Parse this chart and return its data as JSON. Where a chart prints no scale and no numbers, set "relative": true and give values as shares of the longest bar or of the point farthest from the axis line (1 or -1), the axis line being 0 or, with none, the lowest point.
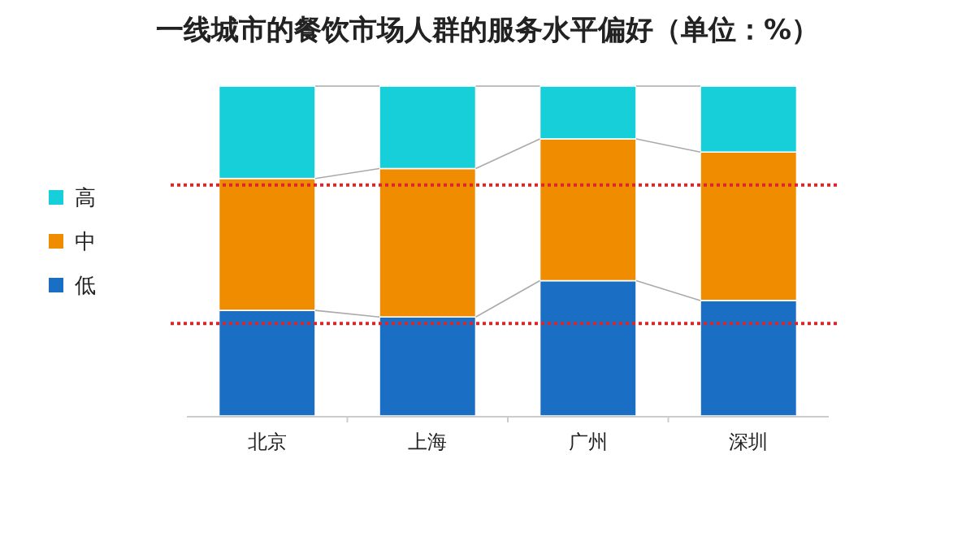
{
  "chart_data": {
    "type": "bar",
    "title": "一线城市的餐饮市场人群的服务水平偏好（单位：%）",
    "categories": [
      "北京",
      "上海",
      "广州",
      "深圳"
    ],
    "stacked": true,
    "relative": true,
    "legend": "left",
    "series": [
      {
        "name": "低",
        "color": "#1a6fc4",
        "values": [
          0.32,
          0.3,
          0.41,
          0.35
        ]
      },
      {
        "name": "中",
        "color": "#f08c00",
        "values": [
          0.4,
          0.45,
          0.43,
          0.45
        ]
      },
      {
        "name": "高",
        "color": "#17cfd8",
        "values": [
          0.28,
          0.25,
          0.16,
          0.2
        ]
      }
    ],
    "ref_lines": [
      {
        "axis": "y",
        "value": 0.7,
        "color": "#d9262b",
        "line_style": "dotted"
      },
      {
        "axis": "y",
        "value": 0.28,
        "color": "#d9262b",
        "line_style": "dotted"
      }
    ]
  }
}
